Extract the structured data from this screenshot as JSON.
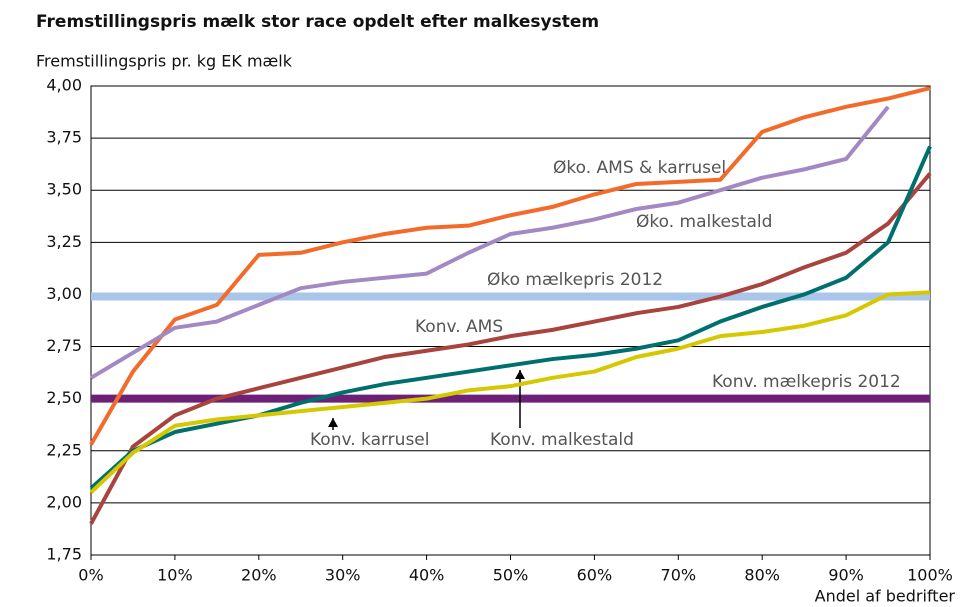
{
  "chart_data": {
    "type": "line",
    "title": "Fremstillingspris mælk stor race opdelt efter malkesystem",
    "y_axis_label": "Fremstillingspris pr. kg EK mælk",
    "x_axis_label": "Andel af bedrifter",
    "x": [
      0,
      5,
      10,
      15,
      20,
      25,
      30,
      35,
      40,
      45,
      50,
      55,
      60,
      65,
      70,
      75,
      80,
      85,
      90,
      95,
      100
    ],
    "series": [
      {
        "name": "Øko. AMS & karrusel",
        "color": "#f26b2a",
        "values": [
          2.28,
          2.63,
          2.88,
          2.95,
          3.19,
          3.2,
          3.25,
          3.29,
          3.32,
          3.33,
          3.38,
          3.42,
          3.48,
          3.53,
          3.54,
          3.55,
          3.78,
          3.85,
          3.9,
          3.94,
          3.99
        ]
      },
      {
        "name": "Øko. malkestald",
        "color": "#a389c4",
        "values": [
          2.6,
          2.72,
          2.84,
          2.87,
          2.95,
          3.03,
          3.06,
          3.08,
          3.1,
          3.2,
          3.29,
          3.32,
          3.36,
          3.41,
          3.44,
          3.5,
          3.56,
          3.6,
          3.65,
          3.9,
          null
        ]
      },
      {
        "name": "Konv. AMS",
        "color": "#a8433e",
        "values": [
          1.9,
          2.27,
          2.42,
          2.5,
          2.55,
          2.6,
          2.65,
          2.7,
          2.73,
          2.76,
          2.8,
          2.83,
          2.87,
          2.91,
          2.94,
          2.99,
          3.05,
          3.13,
          3.2,
          3.34,
          3.58
        ]
      },
      {
        "name": "Konv. malkestald",
        "color": "#00706e",
        "values": [
          2.07,
          2.25,
          2.34,
          2.38,
          2.42,
          2.48,
          2.53,
          2.57,
          2.6,
          2.63,
          2.66,
          2.69,
          2.71,
          2.74,
          2.78,
          2.87,
          2.94,
          3.0,
          3.08,
          3.25,
          3.71
        ]
      },
      {
        "name": "Konv. karrusel",
        "color": "#d6c800",
        "values": [
          2.05,
          2.24,
          2.37,
          2.4,
          2.42,
          2.44,
          2.46,
          2.48,
          2.5,
          2.54,
          2.56,
          2.6,
          2.63,
          2.7,
          2.74,
          2.8,
          2.82,
          2.85,
          2.9,
          3.0,
          3.01
        ]
      }
    ],
    "reference_lines": [
      {
        "label": "Øko mælkepris 2012",
        "value": 2.99,
        "color": "#a9c6ea"
      },
      {
        "label": "Konv. mælkepris 2012",
        "value": 2.5,
        "color": "#6c2177"
      }
    ],
    "xlim": [
      0,
      100
    ],
    "xticks": [
      {
        "value": 0,
        "label": "0%"
      },
      {
        "value": 10,
        "label": "10%"
      },
      {
        "value": 20,
        "label": "20%"
      },
      {
        "value": 30,
        "label": "30%"
      },
      {
        "value": 40,
        "label": "40%"
      },
      {
        "value": 50,
        "label": "50%"
      },
      {
        "value": 60,
        "label": "60%"
      },
      {
        "value": 70,
        "label": "70%"
      },
      {
        "value": 80,
        "label": "80%"
      },
      {
        "value": 90,
        "label": "90%"
      },
      {
        "value": 100,
        "label": "100%"
      }
    ],
    "ylim": [
      1.75,
      4.0
    ],
    "yticks": [
      {
        "value": 1.75,
        "label": "1,75"
      },
      {
        "value": 2.0,
        "label": "2,00"
      },
      {
        "value": 2.25,
        "label": "2,25"
      },
      {
        "value": 2.5,
        "label": "2,50"
      },
      {
        "value": 2.75,
        "label": "2,75"
      },
      {
        "value": 3.0,
        "label": "3,00"
      },
      {
        "value": 3.25,
        "label": "3,25"
      },
      {
        "value": 3.5,
        "label": "3,50"
      },
      {
        "value": 3.75,
        "label": "3,75"
      },
      {
        "value": 4.0,
        "label": "4,00"
      }
    ],
    "grid": true
  }
}
